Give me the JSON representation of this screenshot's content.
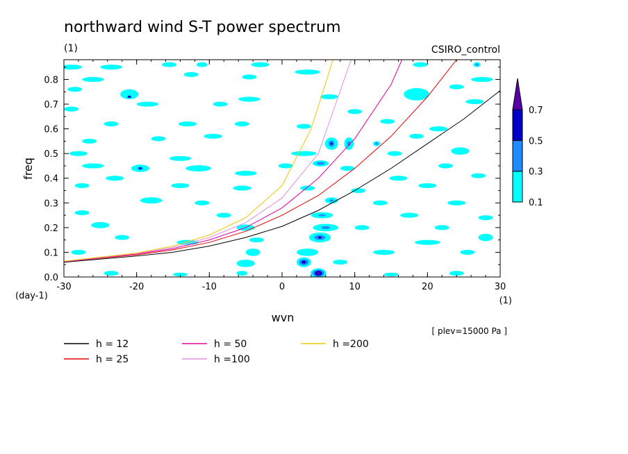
{
  "chart_data": {
    "type": "heatmap",
    "title": "northward wind S-T power spectrum",
    "units_label": "(1)",
    "model_label": "CSIRO_control",
    "xlabel": "wvn",
    "ylabel": "freq",
    "x_unit_label": "(1)",
    "y_unit_label": "(day-1)",
    "annotation": "[ plev=15000 Pa ]",
    "xlim": [
      -30,
      30
    ],
    "ylim": [
      0,
      0.88
    ],
    "xticks": [
      "-30",
      "-20",
      "-10",
      "0",
      "10",
      "20",
      "30"
    ],
    "yticks": [
      "0.0",
      "0.1",
      "0.2",
      "0.3",
      "0.4",
      "0.5",
      "0.6",
      "0.7",
      "0.8"
    ],
    "colorbar": {
      "levels": [
        "0.1",
        "0.3",
        "0.5",
        "0.7"
      ],
      "colors": [
        "#00ffff",
        "#1e8cff",
        "#0000c8",
        "#5a00aa"
      ]
    },
    "contours": [
      {
        "x": -29,
        "y": 0.85,
        "w": 3,
        "h": 0.02,
        "level": 1
      },
      {
        "x": -23.5,
        "y": 0.85,
        "w": 3,
        "h": 0.02,
        "level": 1
      },
      {
        "x": -15.5,
        "y": 0.86,
        "w": 2,
        "h": 0.02,
        "level": 1
      },
      {
        "x": -11,
        "y": 0.86,
        "w": 1.5,
        "h": 0.02,
        "level": 1
      },
      {
        "x": -3,
        "y": 0.86,
        "w": 2.5,
        "h": 0.02,
        "level": 1
      },
      {
        "x": 19,
        "y": 0.86,
        "w": 2,
        "h": 0.02,
        "level": 1
      },
      {
        "x": 26.8,
        "y": 0.86,
        "w": 1,
        "h": 0.02,
        "level": 1
      },
      {
        "x": 26.8,
        "y": 0.86,
        "w": 0.4,
        "h": 0.01,
        "level": 2
      },
      {
        "x": -26,
        "y": 0.8,
        "w": 3,
        "h": 0.02,
        "level": 1
      },
      {
        "x": -12.5,
        "y": 0.82,
        "w": 2,
        "h": 0.02,
        "level": 1
      },
      {
        "x": -4.5,
        "y": 0.81,
        "w": 2,
        "h": 0.02,
        "level": 1
      },
      {
        "x": 3.5,
        "y": 0.83,
        "w": 3.5,
        "h": 0.02,
        "level": 1
      },
      {
        "x": 27.5,
        "y": 0.8,
        "w": 3,
        "h": 0.02,
        "level": 1
      },
      {
        "x": -28.5,
        "y": 0.76,
        "w": 2,
        "h": 0.02,
        "level": 1
      },
      {
        "x": -21,
        "y": 0.74,
        "w": 2.5,
        "h": 0.04,
        "level": 1
      },
      {
        "x": -21,
        "y": 0.73,
        "w": 0.5,
        "h": 0.01,
        "level": 3
      },
      {
        "x": -4.5,
        "y": 0.72,
        "w": 3,
        "h": 0.02,
        "level": 1
      },
      {
        "x": 6.5,
        "y": 0.73,
        "w": 2.5,
        "h": 0.02,
        "level": 1
      },
      {
        "x": 18.5,
        "y": 0.74,
        "w": 3.5,
        "h": 0.05,
        "level": 1
      },
      {
        "x": 24,
        "y": 0.77,
        "w": 2,
        "h": 0.02,
        "level": 1
      },
      {
        "x": -29,
        "y": 0.68,
        "w": 2,
        "h": 0.02,
        "level": 1
      },
      {
        "x": -18.5,
        "y": 0.7,
        "w": 3,
        "h": 0.02,
        "level": 1
      },
      {
        "x": -8.5,
        "y": 0.7,
        "w": 2,
        "h": 0.02,
        "level": 1
      },
      {
        "x": 26.5,
        "y": 0.71,
        "w": 2.5,
        "h": 0.02,
        "level": 1
      },
      {
        "x": 10,
        "y": 0.67,
        "w": 2,
        "h": 0.02,
        "level": 1
      },
      {
        "x": -23.5,
        "y": 0.62,
        "w": 2,
        "h": 0.02,
        "level": 1
      },
      {
        "x": -13,
        "y": 0.62,
        "w": 2.5,
        "h": 0.02,
        "level": 1
      },
      {
        "x": -5.5,
        "y": 0.62,
        "w": 2,
        "h": 0.02,
        "level": 1
      },
      {
        "x": 3,
        "y": 0.61,
        "w": 2,
        "h": 0.02,
        "level": 1
      },
      {
        "x": 14.5,
        "y": 0.63,
        "w": 2,
        "h": 0.02,
        "level": 1
      },
      {
        "x": 21.5,
        "y": 0.6,
        "w": 2.5,
        "h": 0.02,
        "level": 1
      },
      {
        "x": -26.5,
        "y": 0.55,
        "w": 2,
        "h": 0.02,
        "level": 1
      },
      {
        "x": -17,
        "y": 0.56,
        "w": 2,
        "h": 0.02,
        "level": 1
      },
      {
        "x": -9.5,
        "y": 0.57,
        "w": 2.5,
        "h": 0.02,
        "level": 1
      },
      {
        "x": 6.8,
        "y": 0.54,
        "w": 1.8,
        "h": 0.05,
        "level": 1
      },
      {
        "x": 6.8,
        "y": 0.54,
        "w": 0.8,
        "h": 0.025,
        "level": 2
      },
      {
        "x": 6.8,
        "y": 0.54,
        "w": 0.3,
        "h": 0.01,
        "level": 3
      },
      {
        "x": 9.2,
        "y": 0.54,
        "w": 1.3,
        "h": 0.05,
        "level": 1
      },
      {
        "x": 9.2,
        "y": 0.54,
        "w": 0.5,
        "h": 0.02,
        "level": 2
      },
      {
        "x": 13,
        "y": 0.54,
        "w": 1,
        "h": 0.02,
        "level": 1
      },
      {
        "x": 13,
        "y": 0.54,
        "w": 0.4,
        "h": 0.01,
        "level": 2
      },
      {
        "x": 18.5,
        "y": 0.57,
        "w": 2,
        "h": 0.02,
        "level": 1
      },
      {
        "x": -28,
        "y": 0.5,
        "w": 2.5,
        "h": 0.02,
        "level": 1
      },
      {
        "x": -14,
        "y": 0.48,
        "w": 3,
        "h": 0.02,
        "level": 1
      },
      {
        "x": 3,
        "y": 0.5,
        "w": 3.5,
        "h": 0.02,
        "level": 1
      },
      {
        "x": 15.5,
        "y": 0.5,
        "w": 2,
        "h": 0.02,
        "level": 1
      },
      {
        "x": 24.5,
        "y": 0.51,
        "w": 2.5,
        "h": 0.03,
        "level": 1
      },
      {
        "x": -26,
        "y": 0.45,
        "w": 3,
        "h": 0.02,
        "level": 1
      },
      {
        "x": -19.5,
        "y": 0.44,
        "w": 2.5,
        "h": 0.03,
        "level": 1
      },
      {
        "x": -19.5,
        "y": 0.44,
        "w": 0.8,
        "h": 0.012,
        "level": 2
      },
      {
        "x": -19.5,
        "y": 0.44,
        "w": 0.3,
        "h": 0.006,
        "level": 3
      },
      {
        "x": -11.5,
        "y": 0.44,
        "w": 3.5,
        "h": 0.025,
        "level": 1
      },
      {
        "x": 0.5,
        "y": 0.45,
        "w": 2,
        "h": 0.02,
        "level": 1
      },
      {
        "x": 5.3,
        "y": 0.46,
        "w": 2.2,
        "h": 0.025,
        "level": 1
      },
      {
        "x": 5.3,
        "y": 0.46,
        "w": 1.2,
        "h": 0.012,
        "level": 2
      },
      {
        "x": 9,
        "y": 0.44,
        "w": 2,
        "h": 0.02,
        "level": 1
      },
      {
        "x": 22.5,
        "y": 0.45,
        "w": 2,
        "h": 0.02,
        "level": 1
      },
      {
        "x": -23,
        "y": 0.4,
        "w": 2.5,
        "h": 0.02,
        "level": 1
      },
      {
        "x": -5,
        "y": 0.42,
        "w": 3,
        "h": 0.02,
        "level": 1
      },
      {
        "x": 16,
        "y": 0.4,
        "w": 2.5,
        "h": 0.02,
        "level": 1
      },
      {
        "x": 27,
        "y": 0.41,
        "w": 2,
        "h": 0.02,
        "level": 1
      },
      {
        "x": -27.5,
        "y": 0.37,
        "w": 2,
        "h": 0.02,
        "level": 1
      },
      {
        "x": -14,
        "y": 0.37,
        "w": 2.5,
        "h": 0.02,
        "level": 1
      },
      {
        "x": -5.5,
        "y": 0.36,
        "w": 2.5,
        "h": 0.02,
        "level": 1
      },
      {
        "x": 3.5,
        "y": 0.36,
        "w": 2,
        "h": 0.02,
        "level": 1
      },
      {
        "x": 10.5,
        "y": 0.35,
        "w": 2,
        "h": 0.02,
        "level": 1
      },
      {
        "x": 20,
        "y": 0.37,
        "w": 2.5,
        "h": 0.02,
        "level": 1
      },
      {
        "x": -18,
        "y": 0.31,
        "w": 3,
        "h": 0.025,
        "level": 1
      },
      {
        "x": -11,
        "y": 0.3,
        "w": 2,
        "h": 0.02,
        "level": 1
      },
      {
        "x": 6.8,
        "y": 0.31,
        "w": 1.8,
        "h": 0.025,
        "level": 1
      },
      {
        "x": 6.8,
        "y": 0.31,
        "w": 0.6,
        "h": 0.01,
        "level": 2
      },
      {
        "x": 13.5,
        "y": 0.3,
        "w": 2,
        "h": 0.02,
        "level": 1
      },
      {
        "x": 24,
        "y": 0.3,
        "w": 2.5,
        "h": 0.02,
        "level": 1
      },
      {
        "x": -27.5,
        "y": 0.26,
        "w": 2,
        "h": 0.02,
        "level": 1
      },
      {
        "x": -8,
        "y": 0.25,
        "w": 2,
        "h": 0.02,
        "level": 1
      },
      {
        "x": 5.5,
        "y": 0.25,
        "w": 3,
        "h": 0.025,
        "level": 1
      },
      {
        "x": 5.5,
        "y": 0.25,
        "w": 1,
        "h": 0.008,
        "level": 2
      },
      {
        "x": 17.5,
        "y": 0.25,
        "w": 2.5,
        "h": 0.02,
        "level": 1
      },
      {
        "x": 28,
        "y": 0.24,
        "w": 2,
        "h": 0.02,
        "level": 1
      },
      {
        "x": -25,
        "y": 0.21,
        "w": 2.5,
        "h": 0.025,
        "level": 1
      },
      {
        "x": -5,
        "y": 0.2,
        "w": 2.5,
        "h": 0.025,
        "level": 1
      },
      {
        "x": 6,
        "y": 0.2,
        "w": 3.5,
        "h": 0.03,
        "level": 1
      },
      {
        "x": 6,
        "y": 0.2,
        "w": 1.2,
        "h": 0.012,
        "level": 2
      },
      {
        "x": 11,
        "y": 0.2,
        "w": 2,
        "h": 0.02,
        "level": 1
      },
      {
        "x": 22,
        "y": 0.2,
        "w": 2,
        "h": 0.02,
        "level": 1
      },
      {
        "x": -22,
        "y": 0.16,
        "w": 2,
        "h": 0.02,
        "level": 1
      },
      {
        "x": -13,
        "y": 0.14,
        "w": 3,
        "h": 0.02,
        "level": 1
      },
      {
        "x": -3.5,
        "y": 0.15,
        "w": 2,
        "h": 0.02,
        "level": 1
      },
      {
        "x": 5.2,
        "y": 0.16,
        "w": 3,
        "h": 0.04,
        "level": 1
      },
      {
        "x": 5.2,
        "y": 0.16,
        "w": 1.5,
        "h": 0.02,
        "level": 2
      },
      {
        "x": 5.2,
        "y": 0.16,
        "w": 0.5,
        "h": 0.008,
        "level": 3
      },
      {
        "x": 20,
        "y": 0.14,
        "w": 3.5,
        "h": 0.02,
        "level": 1
      },
      {
        "x": 28,
        "y": 0.16,
        "w": 2,
        "h": 0.03,
        "level": 1
      },
      {
        "x": -28,
        "y": 0.1,
        "w": 2,
        "h": 0.02,
        "level": 1
      },
      {
        "x": -4,
        "y": 0.1,
        "w": 2,
        "h": 0.03,
        "level": 1
      },
      {
        "x": 3.5,
        "y": 0.1,
        "w": 3,
        "h": 0.03,
        "level": 1
      },
      {
        "x": 14,
        "y": 0.1,
        "w": 3,
        "h": 0.02,
        "level": 1
      },
      {
        "x": 25.5,
        "y": 0.1,
        "w": 2,
        "h": 0.02,
        "level": 1
      },
      {
        "x": -5,
        "y": 0.055,
        "w": 2.5,
        "h": 0.03,
        "level": 1
      },
      {
        "x": 3,
        "y": 0.06,
        "w": 2,
        "h": 0.04,
        "level": 1
      },
      {
        "x": 3,
        "y": 0.06,
        "w": 1.3,
        "h": 0.025,
        "level": 2
      },
      {
        "x": 3,
        "y": 0.06,
        "w": 0.6,
        "h": 0.012,
        "level": 3
      },
      {
        "x": 8,
        "y": 0.06,
        "w": 2,
        "h": 0.02,
        "level": 1
      },
      {
        "x": -23.5,
        "y": 0.015,
        "w": 2,
        "h": 0.02,
        "level": 1
      },
      {
        "x": -14,
        "y": 0.01,
        "w": 2,
        "h": 0.015,
        "level": 1
      },
      {
        "x": -5.5,
        "y": 0.015,
        "w": 1.5,
        "h": 0.02,
        "level": 1
      },
      {
        "x": 5,
        "y": 0.015,
        "w": 2.2,
        "h": 0.04,
        "level": 1
      },
      {
        "x": 5,
        "y": 0.015,
        "w": 1.6,
        "h": 0.03,
        "level": 2
      },
      {
        "x": 5,
        "y": 0.015,
        "w": 1.0,
        "h": 0.02,
        "level": 3
      },
      {
        "x": 5,
        "y": 0.015,
        "w": 0.4,
        "h": 0.01,
        "level": 4
      },
      {
        "x": 15,
        "y": 0.01,
        "w": 2,
        "h": 0.015,
        "level": 1
      },
      {
        "x": 24,
        "y": 0.015,
        "w": 2,
        "h": 0.02,
        "level": 1
      }
    ],
    "series": [
      {
        "name": "h = 12",
        "color": "#000000",
        "x": [
          -30,
          -20,
          -15,
          -10,
          -5,
          0,
          5,
          10,
          15,
          20,
          25,
          30
        ],
        "y": [
          0.06,
          0.085,
          0.1,
          0.125,
          0.16,
          0.205,
          0.27,
          0.35,
          0.44,
          0.54,
          0.64,
          0.755
        ]
      },
      {
        "name": "h = 25",
        "color": "#e60000",
        "x": [
          -30,
          -20,
          -15,
          -10,
          -5,
          0,
          5,
          10,
          15,
          20,
          24
        ],
        "y": [
          0.062,
          0.09,
          0.11,
          0.14,
          0.185,
          0.25,
          0.33,
          0.44,
          0.57,
          0.73,
          0.88
        ]
      },
      {
        "name": "h = 50",
        "color": "#e000a0",
        "x": [
          -30,
          -20,
          -15,
          -10,
          -5,
          0,
          5,
          10,
          15,
          16.5
        ],
        "y": [
          0.062,
          0.093,
          0.115,
          0.15,
          0.2,
          0.28,
          0.4,
          0.56,
          0.78,
          0.88
        ]
      },
      {
        "name": "h =100",
        "color": "#e090e0",
        "x": [
          -30,
          -20,
          -15,
          -10,
          -5,
          0,
          5,
          9.5
        ],
        "y": [
          0.063,
          0.095,
          0.12,
          0.16,
          0.22,
          0.32,
          0.5,
          0.88
        ]
      },
      {
        "name": "h =200",
        "color": "#f0c800",
        "x": [
          -30,
          -20,
          -15,
          -10,
          -5,
          0,
          4,
          7
        ],
        "y": [
          0.064,
          0.097,
          0.125,
          0.17,
          0.24,
          0.37,
          0.6,
          0.88
        ]
      }
    ]
  }
}
